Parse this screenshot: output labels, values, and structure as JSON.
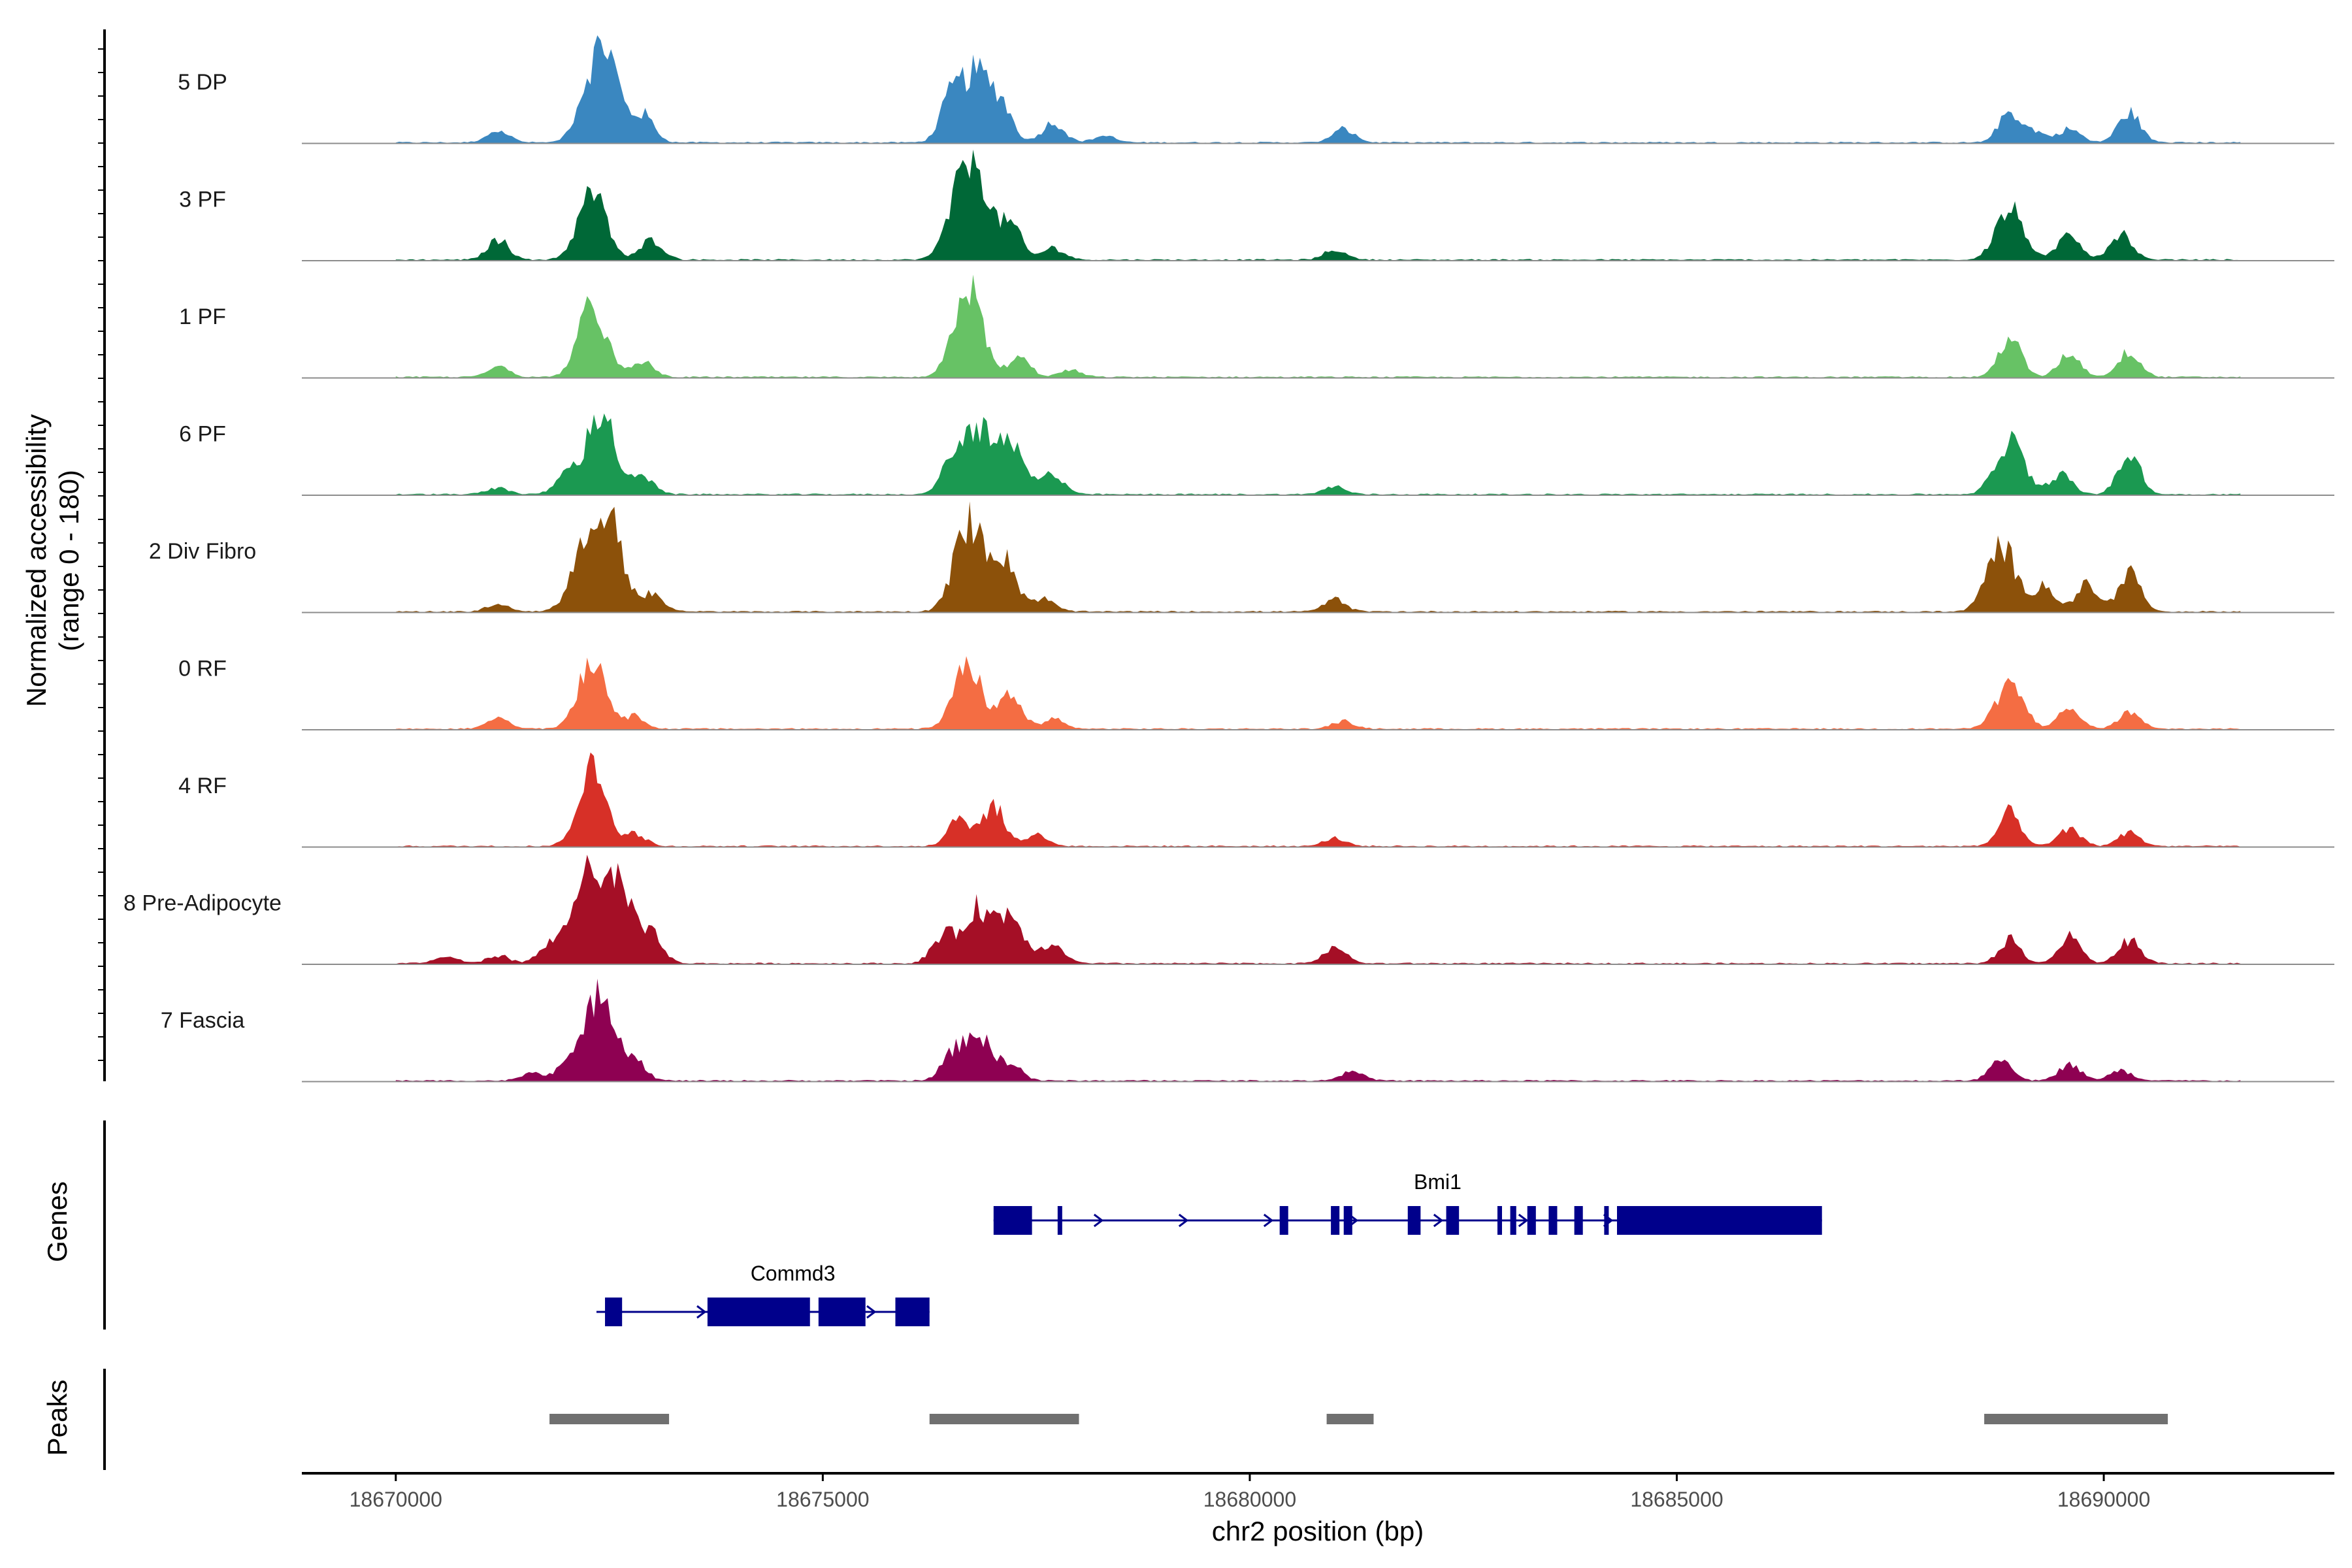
{
  "chart_data": {
    "type": "area",
    "title": "",
    "region": "chr2",
    "xlabel": "chr2 position (bp)",
    "ylabel_line1": "Normalized accessibility",
    "ylabel_line2": "(range 0 - 180)",
    "xlim": [
      18668900,
      18692700
    ],
    "ylim": [
      0,
      180
    ],
    "xticks": [
      18670000,
      18675000,
      18680000,
      18685000,
      18690000
    ],
    "xtick_labels": [
      "18670000",
      "18675000",
      "18680000",
      "18685000",
      "18690000"
    ],
    "baseline_level": 2,
    "peak_loci": [
      18671200,
      18672300,
      18673000,
      18676700,
      18676900,
      18677100,
      18677800,
      18680900,
      18688900,
      18689600,
      18690300
    ],
    "series": [
      {
        "name": "5 DP",
        "color": "#3A87C0",
        "peaks": [
          [
            18671200,
            18
          ],
          [
            18672200,
            42
          ],
          [
            18672450,
            140
          ],
          [
            18672900,
            40
          ],
          [
            18676500,
            60
          ],
          [
            18676800,
            100
          ],
          [
            18677100,
            50
          ],
          [
            18677700,
            30
          ],
          [
            18678300,
            10
          ],
          [
            18681100,
            20
          ],
          [
            18688900,
            45
          ],
          [
            18689200,
            15
          ],
          [
            18689600,
            20
          ],
          [
            18690300,
            45
          ]
        ]
      },
      {
        "name": "3 PF",
        "color": "#006837",
        "peaks": [
          [
            18671200,
            30
          ],
          [
            18672300,
            100
          ],
          [
            18673000,
            30
          ],
          [
            18676600,
            70
          ],
          [
            18676800,
            115
          ],
          [
            18677200,
            50
          ],
          [
            18677700,
            18
          ],
          [
            18681000,
            15
          ],
          [
            18688900,
            75
          ],
          [
            18689600,
            40
          ],
          [
            18690200,
            40
          ]
        ]
      },
      {
        "name": "1 PF",
        "color": "#67C265",
        "peaks": [
          [
            18671200,
            16
          ],
          [
            18672300,
            105
          ],
          [
            18672900,
            22
          ],
          [
            18676700,
            135
          ],
          [
            18677300,
            28
          ],
          [
            18677900,
            10
          ],
          [
            18688900,
            60
          ],
          [
            18689600,
            35
          ],
          [
            18690300,
            38
          ]
        ]
      },
      {
        "name": "6 PF",
        "color": "#1B9951",
        "peaks": [
          [
            18671200,
            10
          ],
          [
            18672000,
            30
          ],
          [
            18672400,
            125
          ],
          [
            18672900,
            25
          ],
          [
            18676500,
            40
          ],
          [
            18676800,
            95
          ],
          [
            18677200,
            70
          ],
          [
            18677700,
            30
          ],
          [
            18681000,
            12
          ],
          [
            18688900,
            80
          ],
          [
            18689500,
            30
          ],
          [
            18690300,
            60
          ]
        ]
      },
      {
        "name": "2 Div Fibro",
        "color": "#8C510A",
        "peaks": [
          [
            18671200,
            12
          ],
          [
            18672200,
            80
          ],
          [
            18672500,
            130
          ],
          [
            18673000,
            25
          ],
          [
            18676700,
            130
          ],
          [
            18677100,
            80
          ],
          [
            18677600,
            18
          ],
          [
            18681000,
            18
          ],
          [
            18688800,
            100
          ],
          [
            18689300,
            40
          ],
          [
            18689800,
            40
          ],
          [
            18690300,
            60
          ]
        ]
      },
      {
        "name": "0 RF",
        "color": "#F46D43",
        "peaks": [
          [
            18671200,
            18
          ],
          [
            18672300,
            105
          ],
          [
            18672800,
            18
          ],
          [
            18676700,
            95
          ],
          [
            18677200,
            50
          ],
          [
            18677700,
            15
          ],
          [
            18681100,
            12
          ],
          [
            18688900,
            65
          ],
          [
            18689600,
            30
          ],
          [
            18690300,
            25
          ]
        ]
      },
      {
        "name": "4 RF",
        "color": "#D73027",
        "peaks": [
          [
            18672300,
            115
          ],
          [
            18672800,
            18
          ],
          [
            18676600,
            45
          ],
          [
            18677000,
            60
          ],
          [
            18677500,
            18
          ],
          [
            18681000,
            12
          ],
          [
            18688900,
            50
          ],
          [
            18689600,
            25
          ],
          [
            18690300,
            20
          ]
        ]
      },
      {
        "name": "8 Pre-Adipocyte",
        "color": "#A50F26",
        "peaks": [
          [
            18670600,
            10
          ],
          [
            18671200,
            12
          ],
          [
            18671800,
            25
          ],
          [
            18672200,
            125
          ],
          [
            18672600,
            120
          ],
          [
            18673000,
            40
          ],
          [
            18676400,
            40
          ],
          [
            18676800,
            80
          ],
          [
            18677200,
            70
          ],
          [
            18677700,
            30
          ],
          [
            18681000,
            25
          ],
          [
            18688900,
            35
          ],
          [
            18689600,
            40
          ],
          [
            18690300,
            35
          ]
        ]
      },
      {
        "name": "7 Fascia",
        "color": "#8E0152",
        "peaks": [
          [
            18671600,
            12
          ],
          [
            18672000,
            25
          ],
          [
            18672400,
            140
          ],
          [
            18672800,
            30
          ],
          [
            18676500,
            30
          ],
          [
            18676800,
            70
          ],
          [
            18677200,
            25
          ],
          [
            18681200,
            15
          ],
          [
            18688800,
            35
          ],
          [
            18689600,
            25
          ],
          [
            18690200,
            15
          ]
        ]
      }
    ],
    "genes_track_label": "Genes",
    "peaks_track_label": "Peaks",
    "genes": [
      {
        "name": "Bmi1",
        "strand": "+",
        "start": 18677000,
        "end": 18686700,
        "exons": [
          [
            18677000,
            18677450
          ],
          [
            18677750,
            18677790
          ],
          [
            18680350,
            18680450
          ],
          [
            18680950,
            18681050
          ],
          [
            18681100,
            18681200
          ],
          [
            18681850,
            18682000
          ],
          [
            18682300,
            18682450
          ],
          [
            18682900,
            18682950
          ],
          [
            18683050,
            18683120
          ],
          [
            18683250,
            18683350
          ],
          [
            18683500,
            18683600
          ],
          [
            18683800,
            18683900
          ],
          [
            18684150,
            18684200
          ],
          [
            18684300,
            18686700
          ]
        ]
      },
      {
        "name": "Commd3",
        "strand": "+",
        "start": 18672350,
        "end": 18676250,
        "exons": [
          [
            18672450,
            18672650
          ],
          [
            18673650,
            18674850
          ],
          [
            18674950,
            18675500
          ],
          [
            18675850,
            18676250
          ]
        ]
      }
    ],
    "peak_regions": [
      [
        18671800,
        18673200
      ],
      [
        18676250,
        18678000
      ],
      [
        18680900,
        18681450
      ],
      [
        18688600,
        18690750
      ]
    ],
    "colors": {
      "gene": "#00008B",
      "peak": "#707070",
      "baseline": "#8c8c8c",
      "axis": "#000000"
    }
  }
}
